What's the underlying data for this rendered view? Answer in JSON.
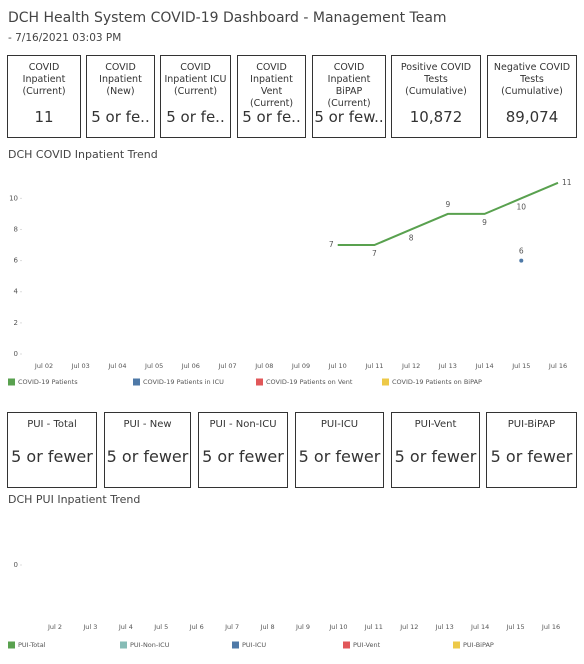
{
  "header": {
    "title": "DCH Health System COVID-19 Dashboard - Management Team",
    "subtitle": "- 7/16/2021 03:03 PM"
  },
  "kpis": [
    {
      "label": "COVID Inpatient (Current)",
      "value": "11"
    },
    {
      "label": "COVID Inpatient (New)",
      "value": "5 or fe.."
    },
    {
      "label": "COVID Inpatient ICU (Current)",
      "value": "5 or fe.."
    },
    {
      "label": "COVID Inpatient Vent (Current)",
      "value": "5 or fe.."
    },
    {
      "label": "COVID Inpatient BiPAP (Current)",
      "value": "5 or few.."
    },
    {
      "label": "Positive COVID Tests (Cumulative)",
      "value": "10,872"
    },
    {
      "label": "Negative COVID Tests (Cumulative)",
      "value": "89,074"
    }
  ],
  "pui_cards": [
    {
      "label": "PUI - Total",
      "value": "5 or fewer"
    },
    {
      "label": "PUI - New",
      "value": "5 or fewer"
    },
    {
      "label": "PUI - Non-ICU",
      "value": "5 or fewer"
    },
    {
      "label": "PUI-ICU",
      "value": "5 or fewer"
    },
    {
      "label": "PUI-Vent",
      "value": "5 or fewer"
    },
    {
      "label": "PUI-BiPAP",
      "value": "5 or fewer"
    }
  ],
  "chart_data": [
    {
      "type": "line",
      "title": "DCH COVID Inpatient Trend",
      "categories": [
        "Jul 02",
        "Jul 03",
        "Jul 04",
        "Jul 05",
        "Jul 06",
        "Jul 07",
        "Jul 08",
        "Jul 09",
        "Jul 10",
        "Jul 11",
        "Jul 12",
        "Jul 13",
        "Jul 14",
        "Jul 15",
        "Jul 16"
      ],
      "series": [
        {
          "name": "COVID-19 Patients",
          "color": "#59a14f",
          "values": [
            null,
            null,
            null,
            null,
            null,
            null,
            null,
            null,
            7,
            7,
            8,
            9,
            9,
            10,
            11
          ]
        },
        {
          "name": "COVID-19 Patients in ICU",
          "color": "#4e79a7",
          "values": [
            null,
            null,
            null,
            null,
            null,
            null,
            null,
            null,
            null,
            null,
            null,
            null,
            null,
            6,
            null
          ]
        },
        {
          "name": "COVID-19 Patients on Vent",
          "color": "#e15759",
          "values": [
            null,
            null,
            null,
            null,
            null,
            null,
            null,
            null,
            null,
            null,
            null,
            null,
            null,
            null,
            null
          ]
        },
        {
          "name": "COVID-19 Patients on BiPAP",
          "color": "#edc948",
          "values": [
            null,
            null,
            null,
            null,
            null,
            null,
            null,
            null,
            null,
            null,
            null,
            null,
            null,
            null,
            null
          ]
        }
      ],
      "ylim": [
        0,
        11.5
      ],
      "yticks": [
        0,
        2,
        4,
        6,
        8,
        10
      ],
      "legend": "bottom"
    },
    {
      "type": "line",
      "title": "DCH PUI Inpatient Trend",
      "categories": [
        "Jul 2",
        "Jul 3",
        "Jul 4",
        "Jul 5",
        "Jul 6",
        "Jul 7",
        "Jul 8",
        "Jul 9",
        "Jul 10",
        "Jul 11",
        "Jul 12",
        "Jul 13",
        "Jul 14",
        "Jul 15",
        "Jul 16"
      ],
      "series": [
        {
          "name": "PUI-Total",
          "color": "#59a14f",
          "values": [
            null,
            null,
            null,
            null,
            null,
            null,
            null,
            null,
            null,
            null,
            null,
            null,
            null,
            null,
            null
          ]
        },
        {
          "name": "PUI-Non-ICU",
          "color": "#86bcb6",
          "values": [
            null,
            null,
            null,
            null,
            null,
            null,
            null,
            null,
            null,
            null,
            null,
            null,
            null,
            null,
            null
          ]
        },
        {
          "name": "PUI-ICU",
          "color": "#4e79a7",
          "values": [
            null,
            null,
            null,
            null,
            null,
            null,
            null,
            null,
            null,
            null,
            null,
            null,
            null,
            null,
            null
          ]
        },
        {
          "name": "PUI-Vent",
          "color": "#e15759",
          "values": [
            null,
            null,
            null,
            null,
            null,
            null,
            null,
            null,
            null,
            null,
            null,
            null,
            null,
            null,
            null
          ]
        },
        {
          "name": "PUI-BiPAP",
          "color": "#edc948",
          "values": [
            null,
            null,
            null,
            null,
            null,
            null,
            null,
            null,
            null,
            null,
            null,
            null,
            null,
            null,
            null
          ]
        }
      ],
      "ylim": [
        -1,
        1
      ],
      "yticks": [
        0
      ],
      "legend": "bottom"
    }
  ]
}
